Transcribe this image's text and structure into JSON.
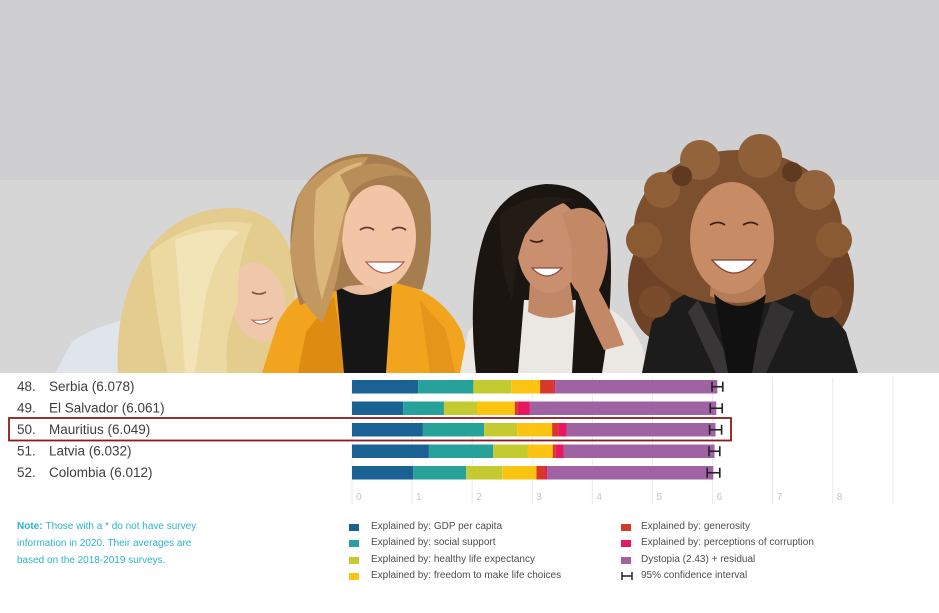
{
  "chart_data": {
    "type": "bar",
    "orientation": "horizontal",
    "stacked": true,
    "ranks": [
      "48.",
      "49.",
      "50.",
      "51.",
      "52."
    ],
    "categories": [
      "Serbia (6.078)",
      "El Salvador (6.061)",
      "Mauritius (6.049)",
      "Latvia (6.032)",
      "Colombia (6.012)"
    ],
    "scores": [
      6.078,
      6.061,
      6.049,
      6.032,
      6.012
    ],
    "series": [
      {
        "name": "Explained by: GDP per capita",
        "color": "#1b6294",
        "values": [
          1.1,
          0.85,
          1.18,
          1.28,
          1.02
        ]
      },
      {
        "name": "Explained by: social support",
        "color": "#27a29b",
        "values": [
          0.92,
          0.68,
          1.02,
          1.07,
          0.88
        ]
      },
      {
        "name": "Explained by: healthy life expectancy",
        "color": "#c4cb30",
        "values": [
          0.63,
          0.55,
          0.55,
          0.57,
          0.6
        ]
      },
      {
        "name": "Explained by: freedom to make life choices",
        "color": "#fbc312",
        "values": [
          0.48,
          0.63,
          0.58,
          0.42,
          0.57
        ]
      },
      {
        "name": "Explained by: generosity",
        "color": "#d8382a",
        "values": [
          0.22,
          0.05,
          0.1,
          0.05,
          0.15
        ]
      },
      {
        "name": "Explained by: perceptions of corruption",
        "color": "#e8185e",
        "values": [
          0.03,
          0.2,
          0.14,
          0.13,
          0.03
        ]
      },
      {
        "name": "Dystopia (2.43) + residual",
        "color": "#9f62a3",
        "values": [
          2.698,
          3.101,
          2.479,
          2.512,
          2.762
        ]
      }
    ],
    "ci": [
      [
        5.99,
        6.17
      ],
      [
        5.96,
        6.16
      ],
      [
        5.95,
        6.15
      ],
      [
        5.94,
        6.12
      ],
      [
        5.91,
        6.12
      ]
    ],
    "ci_label": "95% confidence interval",
    "ci_color": "#222222",
    "xlim": [
      0,
      9
    ],
    "xticks": [
      0,
      1,
      2,
      3,
      4,
      5,
      6,
      7,
      8
    ],
    "grid": true,
    "legend_position": "bottom",
    "highlight_index": 2,
    "highlight_color": "#8b1b1b"
  },
  "note": {
    "label": "Note:",
    "lines": [
      "Those with a * do not have survey",
      "information in 2020. Their averages are",
      "based on the 2018-2019 surveys."
    ],
    "color": "#2db3c6"
  }
}
